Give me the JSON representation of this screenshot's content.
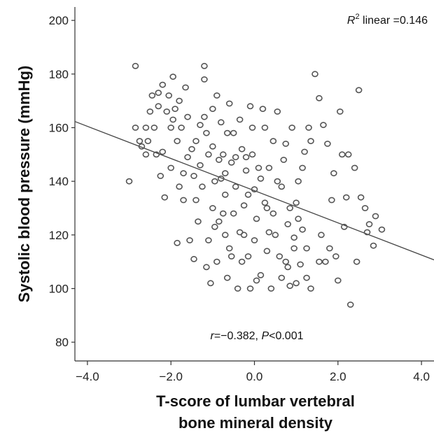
{
  "chart_data": {
    "type": "scatter",
    "xlabel_lines": [
      "T-score of lumbar vertebral",
      "bone mineral density"
    ],
    "ylabel": "Systolic blood pressure (mmHg)",
    "xlim": [
      -4.3,
      4.3
    ],
    "ylim": [
      73,
      205
    ],
    "x_ticks": [
      -4.0,
      -2.0,
      0.0,
      2.0,
      4.0
    ],
    "x_tick_labels": [
      "−4.0",
      "−2.0",
      "0.0",
      "2.0",
      "4.0"
    ],
    "y_ticks": [
      80,
      100,
      120,
      140,
      160,
      180,
      200
    ],
    "y_tick_labels": [
      "80",
      "100",
      "120",
      "140",
      "160",
      "180",
      "200"
    ],
    "grid": false,
    "fit_line": {
      "x": [
        -4.3,
        4.3
      ],
      "y": [
        162.3,
        110.7
      ]
    },
    "annotations": {
      "r2_symbol": "R",
      "r2_superscript": "2",
      "r2_text": " linear =0.146",
      "corr_symbol": "r",
      "corr_text": "=−0.382, ",
      "p_symbol": "P",
      "p_text": "<0.001"
    },
    "points": [
      [
        -3.0,
        140
      ],
      [
        -2.85,
        183
      ],
      [
        -2.85,
        160
      ],
      [
        -2.75,
        155
      ],
      [
        -2.7,
        153
      ],
      [
        -2.6,
        160
      ],
      [
        -2.6,
        150
      ],
      [
        -2.5,
        166
      ],
      [
        -2.45,
        172
      ],
      [
        -2.4,
        160
      ],
      [
        -2.35,
        150
      ],
      [
        -2.3,
        173
      ],
      [
        -2.25,
        142
      ],
      [
        -2.2,
        176
      ],
      [
        -2.15,
        134
      ],
      [
        -2.1,
        166
      ],
      [
        -2.05,
        172
      ],
      [
        -2.0,
        160
      ],
      [
        -2.0,
        145
      ],
      [
        -1.95,
        179
      ],
      [
        -1.9,
        167
      ],
      [
        -1.85,
        155
      ],
      [
        -1.85,
        117
      ],
      [
        -1.8,
        138
      ],
      [
        -1.75,
        160
      ],
      [
        -1.7,
        143
      ],
      [
        -1.65,
        175
      ],
      [
        -1.6,
        164
      ],
      [
        -1.55,
        118
      ],
      [
        -1.5,
        152
      ],
      [
        -1.45,
        111
      ],
      [
        -1.4,
        155
      ],
      [
        -1.35,
        125
      ],
      [
        -1.3,
        146
      ],
      [
        -1.25,
        138
      ],
      [
        -1.2,
        183
      ],
      [
        -1.2,
        178
      ],
      [
        -1.2,
        164
      ],
      [
        -1.15,
        158
      ],
      [
        -1.1,
        150
      ],
      [
        -1.1,
        118
      ],
      [
        -1.05,
        102
      ],
      [
        -1.0,
        153
      ],
      [
        -1.0,
        130
      ],
      [
        -0.95,
        140
      ],
      [
        -0.9,
        172
      ],
      [
        -0.9,
        110
      ],
      [
        -0.85,
        125
      ],
      [
        -0.8,
        162
      ],
      [
        -0.8,
        141
      ],
      [
        -0.75,
        150
      ],
      [
        -0.7,
        135
      ],
      [
        -0.7,
        120
      ],
      [
        -0.65,
        104
      ],
      [
        -0.6,
        169
      ],
      [
        -0.6,
        115
      ],
      [
        -0.55,
        147
      ],
      [
        -0.5,
        158
      ],
      [
        -0.5,
        128
      ],
      [
        -0.45,
        138
      ],
      [
        -0.4,
        100
      ],
      [
        -0.35,
        163
      ],
      [
        -0.3,
        152
      ],
      [
        -0.3,
        110
      ],
      [
        -0.25,
        120
      ],
      [
        -0.2,
        144
      ],
      [
        -0.15,
        135
      ],
      [
        -0.1,
        168
      ],
      [
        -0.1,
        100
      ],
      [
        -0.05,
        150
      ],
      [
        0.0,
        137
      ],
      [
        0.0,
        118
      ],
      [
        0.05,
        126
      ],
      [
        0.1,
        145
      ],
      [
        0.15,
        105
      ],
      [
        0.2,
        167
      ],
      [
        0.25,
        132
      ],
      [
        0.3,
        114
      ],
      [
        0.35,
        145
      ],
      [
        0.4,
        100
      ],
      [
        0.45,
        155
      ],
      [
        0.5,
        120
      ],
      [
        0.55,
        166
      ],
      [
        0.6,
        112
      ],
      [
        0.65,
        138
      ],
      [
        0.7,
        148
      ],
      [
        0.75,
        110
      ],
      [
        0.8,
        124
      ],
      [
        0.85,
        101
      ],
      [
        0.9,
        160
      ],
      [
        0.95,
        115
      ],
      [
        1.0,
        132
      ],
      [
        1.0,
        102
      ],
      [
        1.05,
        140
      ],
      [
        1.1,
        109
      ],
      [
        1.15,
        122
      ],
      [
        1.2,
        151
      ],
      [
        1.25,
        115
      ],
      [
        1.3,
        160
      ],
      [
        1.35,
        100
      ],
      [
        1.45,
        180
      ],
      [
        1.55,
        171
      ],
      [
        1.6,
        120
      ],
      [
        1.7,
        110
      ],
      [
        1.75,
        154
      ],
      [
        1.85,
        133
      ],
      [
        1.9,
        143
      ],
      [
        2.0,
        103
      ],
      [
        2.05,
        166
      ],
      [
        2.1,
        150
      ],
      [
        2.15,
        123
      ],
      [
        2.25,
        150
      ],
      [
        2.3,
        94
      ],
      [
        2.4,
        145
      ],
      [
        2.5,
        174
      ],
      [
        2.55,
        134
      ],
      [
        2.65,
        130
      ],
      [
        2.75,
        124
      ],
      [
        2.85,
        116
      ],
      [
        3.05,
        122
      ],
      [
        -2.55,
        155
      ],
      [
        -2.3,
        168
      ],
      [
        -1.95,
        163
      ],
      [
        -1.8,
        170
      ],
      [
        -1.6,
        149
      ],
      [
        -1.4,
        133
      ],
      [
        -1.3,
        161
      ],
      [
        -1.15,
        108
      ],
      [
        -1.0,
        167
      ],
      [
        -0.95,
        123
      ],
      [
        -0.85,
        148
      ],
      [
        -0.75,
        128
      ],
      [
        -0.65,
        158
      ],
      [
        -0.55,
        112
      ],
      [
        -0.45,
        149
      ],
      [
        -0.35,
        121
      ],
      [
        -0.25,
        131
      ],
      [
        -0.15,
        112
      ],
      [
        -0.05,
        160
      ],
      [
        0.05,
        103
      ],
      [
        0.15,
        141
      ],
      [
        0.25,
        160
      ],
      [
        0.35,
        121
      ],
      [
        0.45,
        128
      ],
      [
        0.55,
        140
      ],
      [
        0.65,
        104
      ],
      [
        0.75,
        154
      ],
      [
        0.85,
        130
      ],
      [
        0.95,
        119
      ],
      [
        1.05,
        126
      ],
      [
        1.15,
        145
      ],
      [
        1.25,
        104
      ],
      [
        1.55,
        110
      ],
      [
        1.65,
        161
      ],
      [
        1.8,
        115
      ],
      [
        1.95,
        112
      ],
      [
        2.2,
        134
      ],
      [
        2.45,
        110
      ],
      [
        2.7,
        121
      ],
      [
        2.9,
        127
      ],
      [
        -2.2,
        151
      ],
      [
        -1.7,
        133
      ],
      [
        -1.45,
        142
      ],
      [
        -0.7,
        143
      ],
      [
        -0.2,
        149
      ],
      [
        0.3,
        130
      ],
      [
        0.8,
        108
      ],
      [
        1.35,
        155
      ]
    ]
  }
}
